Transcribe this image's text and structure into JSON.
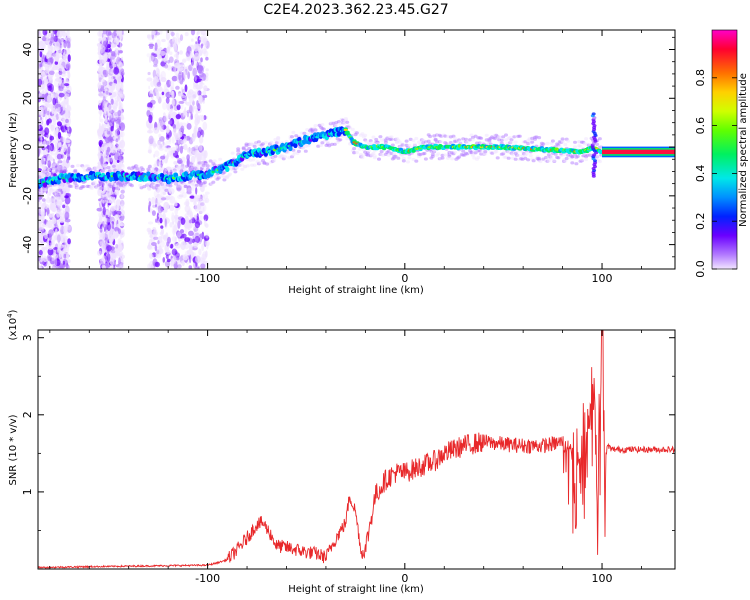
{
  "title": "C2E4.2023.362.23.45.G27",
  "colors": {
    "snr_line": "#e8282a",
    "axis": "#000000"
  },
  "chart_data": [
    {
      "type": "heatmap",
      "xlabel": "Height of straight line (km)",
      "ylabel": "Frequency (Hz)",
      "xlim": [
        -186,
        137
      ],
      "ylim": [
        -50,
        48
      ],
      "xticks": [
        -100,
        0,
        100
      ],
      "yticks": [
        -40,
        -20,
        0,
        20,
        40
      ],
      "colorbar": {
        "label": "Normalized spectral amplitude",
        "range": [
          0,
          1
        ],
        "ticks": [
          "0.0",
          "0.2",
          "0.4",
          "0.6",
          "0.8"
        ],
        "tick_values": [
          0,
          0.2,
          0.4,
          0.6,
          0.8
        ],
        "colormap": "rainbow"
      },
      "ridge": [
        {
          "x": -186,
          "y": -15
        },
        {
          "x": -175,
          "y": -13
        },
        {
          "x": -160,
          "y": -12
        },
        {
          "x": -145,
          "y": -12
        },
        {
          "x": -130,
          "y": -12
        },
        {
          "x": -120,
          "y": -13
        },
        {
          "x": -110,
          "y": -12
        },
        {
          "x": -100,
          "y": -11
        },
        {
          "x": -90,
          "y": -8
        },
        {
          "x": -80,
          "y": -3
        },
        {
          "x": -70,
          "y": -2
        },
        {
          "x": -60,
          "y": 0
        },
        {
          "x": -50,
          "y": 3
        },
        {
          "x": -40,
          "y": 5
        },
        {
          "x": -30,
          "y": 7
        },
        {
          "x": -26,
          "y": 2
        },
        {
          "x": -20,
          "y": 0
        },
        {
          "x": -10,
          "y": 0
        },
        {
          "x": 0,
          "y": -2
        },
        {
          "x": 10,
          "y": 0
        },
        {
          "x": 30,
          "y": 0
        },
        {
          "x": 50,
          "y": 0
        },
        {
          "x": 70,
          "y": -1
        },
        {
          "x": 90,
          "y": -2
        },
        {
          "x": 96,
          "y": 0
        },
        {
          "x": 100,
          "y": -2
        },
        {
          "x": 137,
          "y": -2
        }
      ],
      "noise_bands": [
        [
          -186,
          -170
        ],
        [
          -155,
          -143
        ],
        [
          -130,
          -100
        ]
      ]
    },
    {
      "type": "line",
      "xlabel": "Height of straight line (km)",
      "ylabel": "SNR (10 * v/v)",
      "y_multiplier": "(x10",
      "y_multiplier_exp": "4",
      "y_multiplier_close": ")",
      "xlim": [
        -186,
        137
      ],
      "ylim": [
        0,
        3.1
      ],
      "xticks": [
        -100,
        0,
        100
      ],
      "yticks": [
        1,
        2,
        3
      ],
      "x": [
        -186,
        -160,
        -130,
        -100,
        -95,
        -90,
        -85,
        -80,
        -75,
        -72,
        -68,
        -65,
        -60,
        -55,
        -50,
        -45,
        -40,
        -35,
        -30,
        -28,
        -25,
        -22,
        -20,
        -15,
        -10,
        -5,
        0,
        5,
        10,
        15,
        20,
        25,
        30,
        40,
        50,
        60,
        70,
        75,
        80,
        85,
        90,
        93,
        96,
        98,
        100,
        101,
        103,
        105,
        110,
        120,
        130,
        137
      ],
      "y": [
        0.02,
        0.03,
        0.04,
        0.05,
        0.08,
        0.12,
        0.25,
        0.4,
        0.58,
        0.6,
        0.45,
        0.3,
        0.28,
        0.25,
        0.22,
        0.2,
        0.15,
        0.4,
        0.6,
        0.95,
        0.75,
        0.2,
        0.25,
        0.95,
        1.15,
        1.25,
        1.25,
        1.3,
        1.35,
        1.4,
        1.5,
        1.55,
        1.6,
        1.65,
        1.62,
        1.6,
        1.6,
        1.62,
        1.65,
        1.5,
        1.7,
        1.9,
        2.3,
        1.2,
        2.9,
        1.4,
        1.6,
        1.55,
        1.55,
        1.55,
        1.55,
        1.55
      ]
    }
  ]
}
